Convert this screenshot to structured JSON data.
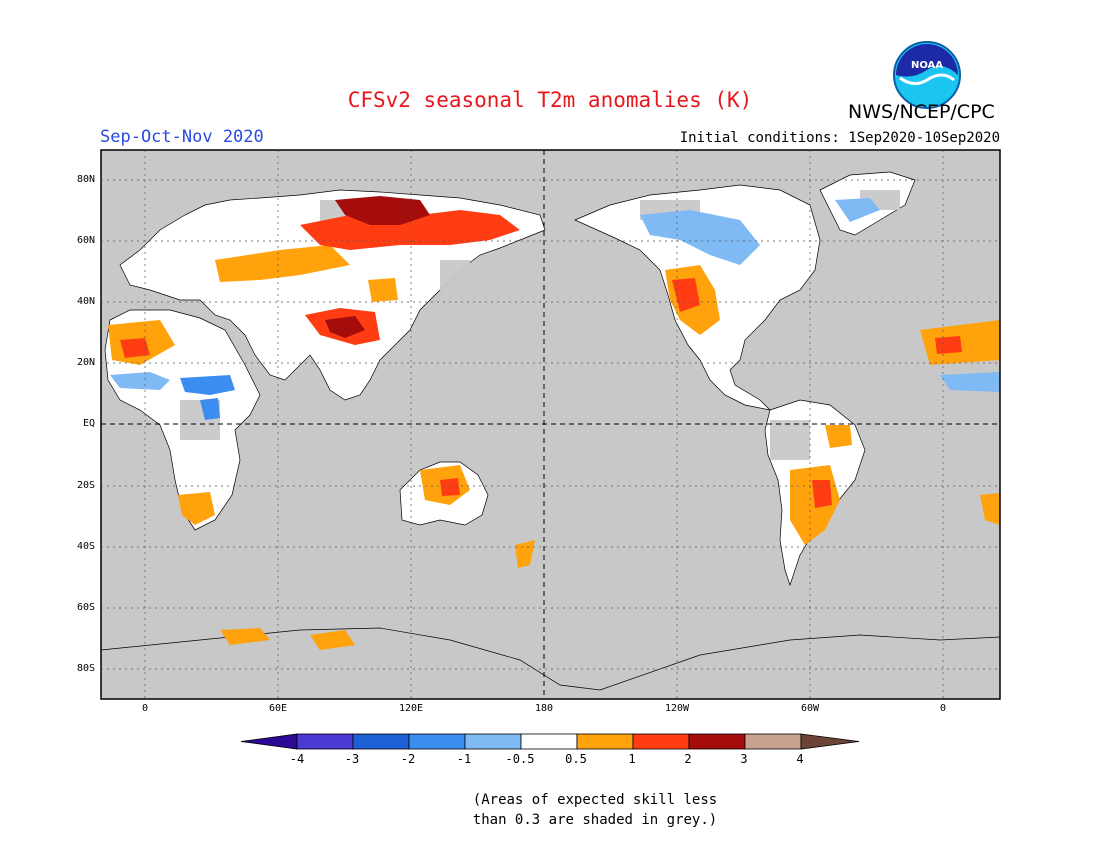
{
  "header": {
    "title": "CFSv2 seasonal T2m anomalies (K)",
    "org": "NWS/NCEP/CPC",
    "season": "Sep-Oct-Nov 2020",
    "initial_conditions": "Initial conditions: 1Sep2020-10Sep2020",
    "logo_text": "NOAA"
  },
  "map": {
    "lat_labels": [
      "80N",
      "60N",
      "40N",
      "20N",
      "EQ",
      "20S",
      "40S",
      "60S",
      "80S"
    ],
    "lon_labels": [
      "0",
      "60E",
      "120E",
      "180",
      "120W",
      "60W",
      "0"
    ],
    "colors": {
      "ocean": "#c8c8c8",
      "land_neutral": "#ffffff"
    }
  },
  "colorbar": {
    "labels": [
      "-4",
      "-3",
      "-2",
      "-1",
      "-0.5",
      "0.5",
      "1",
      "2",
      "3",
      "4"
    ],
    "colors": [
      "#2d0a96",
      "#4b3bd3",
      "#2060d6",
      "#3b8df0",
      "#7fbaf5",
      "#ffffff",
      "#ffa20b",
      "#ff3c12",
      "#a50c0c",
      "#c8a090",
      "#6b4436"
    ]
  },
  "footnote": {
    "line1": "(Areas of expected skill less",
    "line2": "than 0.3 are shaded in grey.)"
  }
}
